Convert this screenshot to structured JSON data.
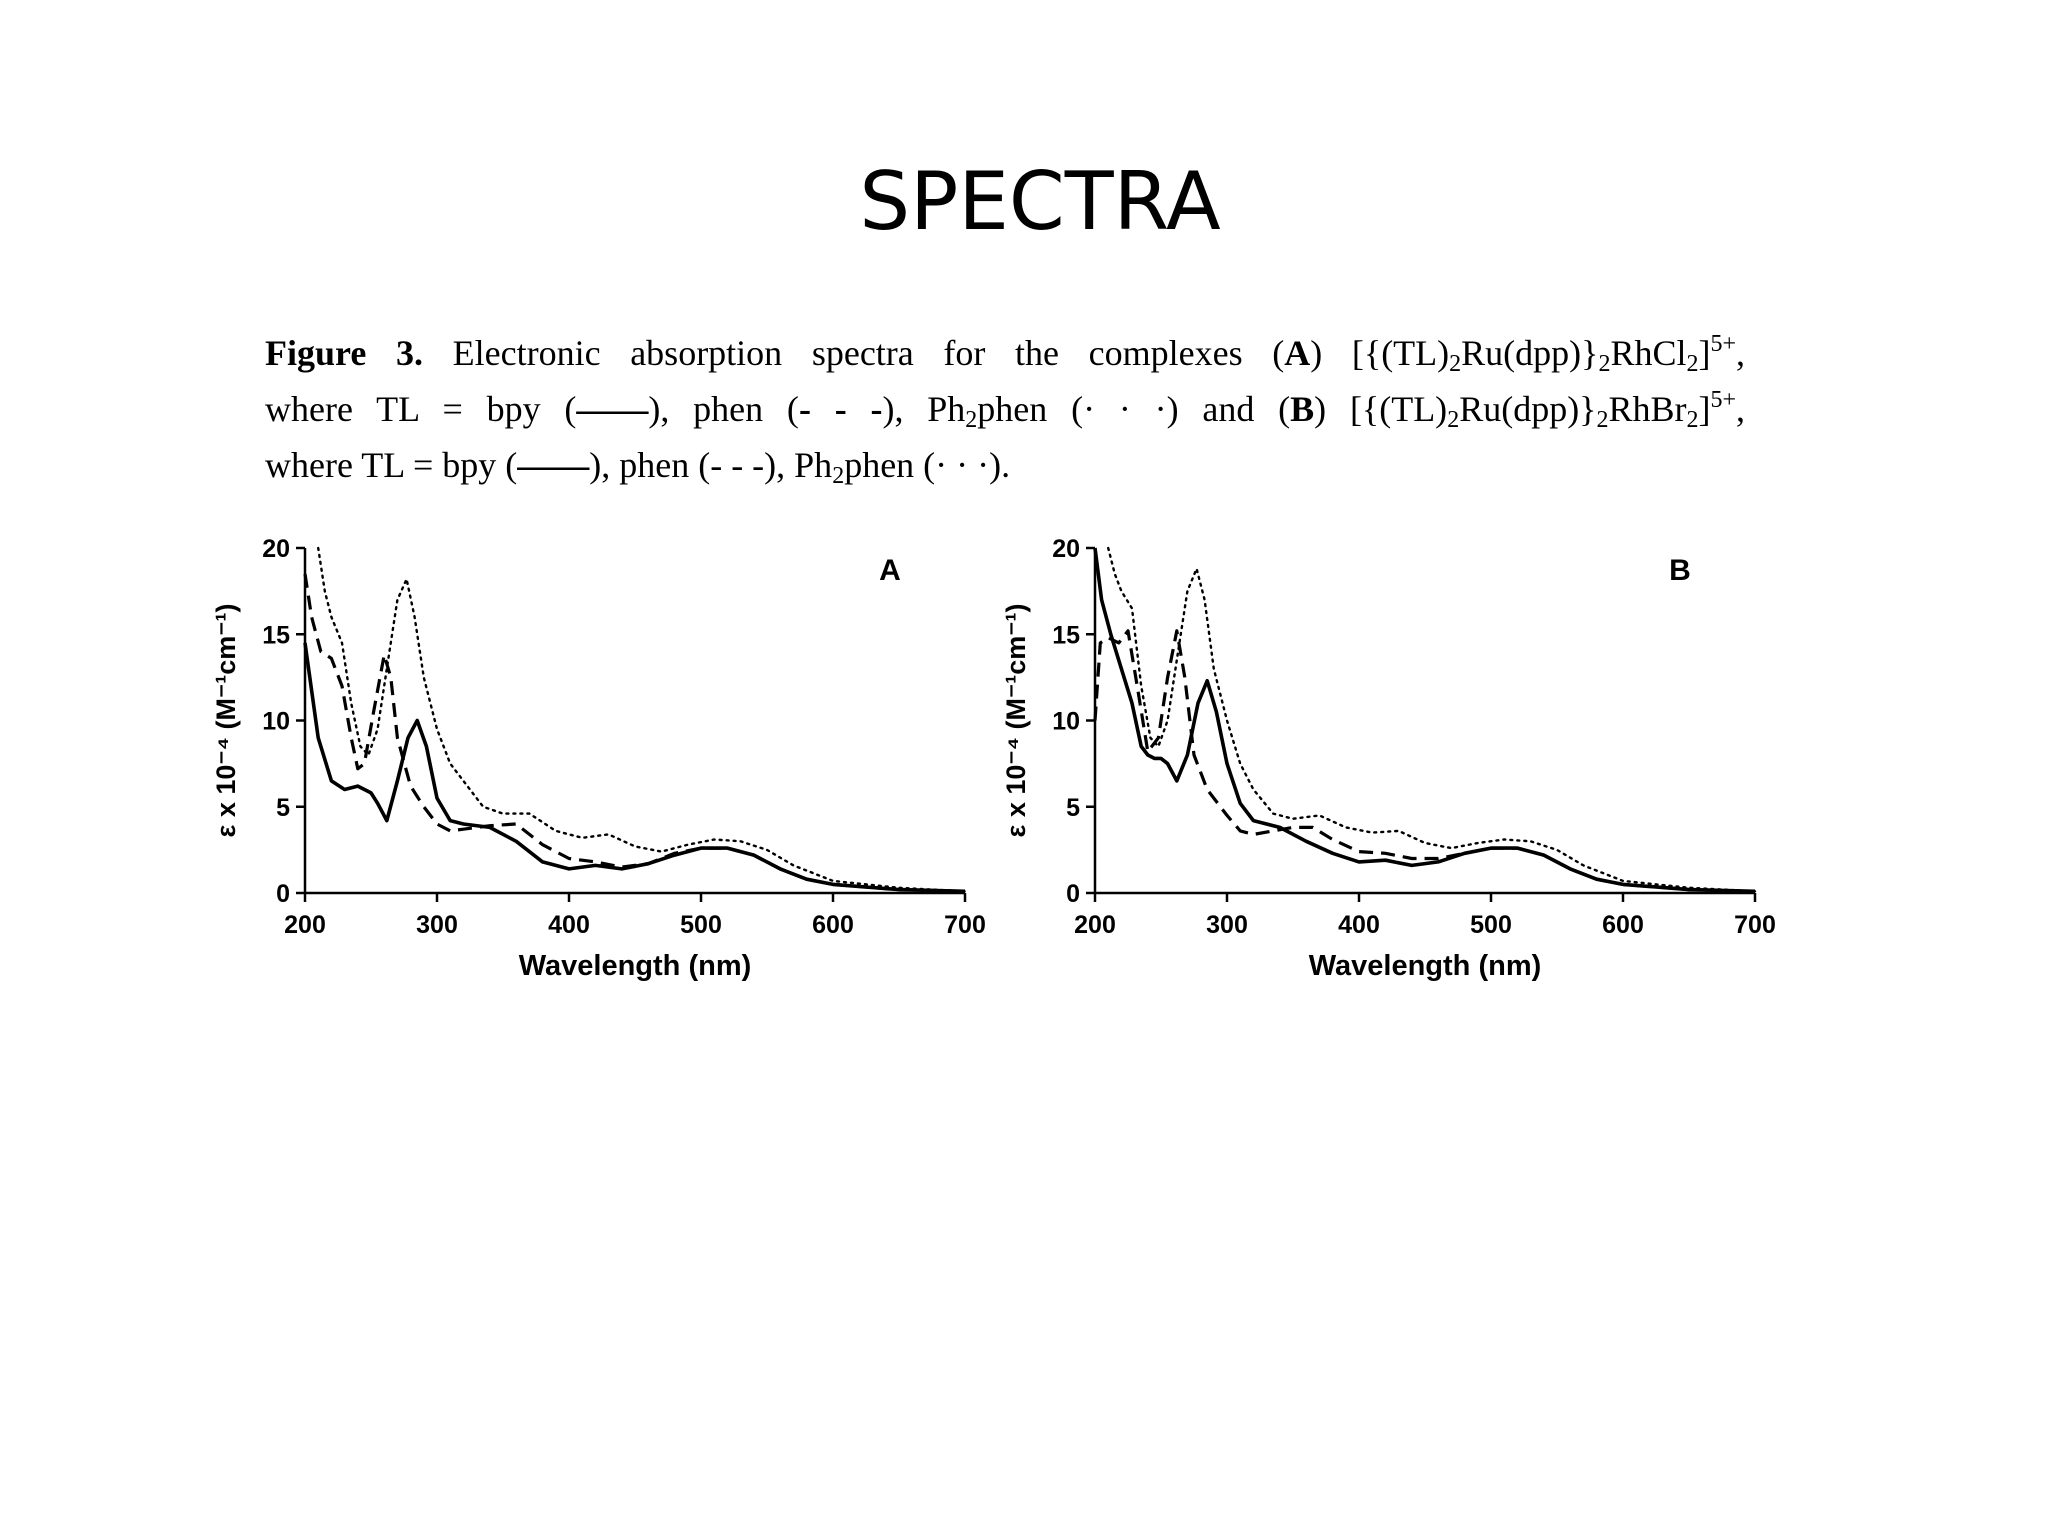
{
  "slide": {
    "title": "SPECTRA"
  },
  "caption": {
    "label": "Figure 3.",
    "intro": " Electronic absorption spectra for the complexes (",
    "panel_a": "A",
    "part1": ") [{(TL)",
    "sub_2": "2",
    "ru_dpp": "Ru(dpp)}",
    "rh_cl": "RhCl",
    "close_bracket": "]",
    "charge": "5+",
    "comma": ",",
    "where": "where TL = bpy (",
    "solid_glyph": "——",
    "phen": "), phen (",
    "dash_glyph": "- - -",
    "ph2phen_pre": "), Ph",
    "ph2phen_post": "phen (",
    "dot_glyph": "· · ·",
    "and": ") and (",
    "panel_b": "B",
    "part2": ") [{(TL)",
    "rh_br": "RhBr",
    "end": ")."
  },
  "chart_data": [
    {
      "type": "line",
      "panel_label": "A",
      "xlabel": "Wavelength (nm)",
      "ylabel": "ε x 10⁻⁴ (M⁻¹cm⁻¹)",
      "xlim": [
        200,
        700
      ],
      "ylim": [
        0,
        20
      ],
      "xticks": [
        "200",
        "300",
        "400",
        "500",
        "600",
        "700"
      ],
      "yticks": [
        "0",
        "5",
        "10",
        "15",
        "20"
      ],
      "grid": false,
      "series": [
        {
          "style": "solid",
          "x": [
            200,
            210,
            220,
            230,
            240,
            250,
            255,
            262,
            270,
            278,
            285,
            292,
            300,
            310,
            320,
            340,
            360,
            380,
            400,
            420,
            440,
            460,
            480,
            500,
            520,
            540,
            560,
            580,
            600,
            650,
            700
          ],
          "y": [
            14.5,
            9,
            6.5,
            6,
            6.2,
            5.8,
            5.2,
            4.2,
            6.5,
            9,
            10,
            8.5,
            5.5,
            4.2,
            4,
            3.8,
            3,
            1.8,
            1.4,
            1.6,
            1.4,
            1.7,
            2.2,
            2.6,
            2.6,
            2.2,
            1.4,
            0.8,
            0.5,
            0.2,
            0.1
          ]
        },
        {
          "style": "dashed",
          "x": [
            200,
            205,
            212,
            220,
            228,
            235,
            240,
            245,
            252,
            260,
            265,
            270,
            280,
            290,
            300,
            310,
            320,
            340,
            360,
            380,
            400,
            420,
            440,
            460,
            480,
            500,
            520,
            540,
            560,
            580,
            600,
            650,
            700
          ],
          "y": [
            18.5,
            16,
            14,
            13.6,
            12,
            9,
            7.2,
            7.5,
            10.5,
            13.8,
            12.5,
            9,
            6.2,
            5,
            4,
            3.6,
            3.7,
            3.9,
            4,
            2.8,
            2,
            1.8,
            1.5,
            1.7,
            2.3,
            2.6,
            2.6,
            2.2,
            1.4,
            0.8,
            0.5,
            0.2,
            0.1
          ]
        },
        {
          "style": "dotted",
          "x": [
            210,
            215,
            220,
            228,
            235,
            242,
            248,
            255,
            262,
            270,
            277,
            283,
            290,
            300,
            310,
            320,
            335,
            350,
            370,
            390,
            410,
            430,
            450,
            470,
            490,
            510,
            530,
            550,
            570,
            600,
            650,
            700
          ],
          "y": [
            20,
            17.5,
            16,
            14.5,
            11,
            8.5,
            8,
            9.5,
            13,
            17,
            18.2,
            16,
            12.5,
            9.5,
            7.5,
            6.5,
            5,
            4.6,
            4.6,
            3.6,
            3.2,
            3.4,
            2.7,
            2.4,
            2.8,
            3.1,
            3,
            2.5,
            1.6,
            0.7,
            0.3,
            0.1
          ]
        }
      ]
    },
    {
      "type": "line",
      "panel_label": "B",
      "xlabel": "Wavelength (nm)",
      "ylabel": "ε x 10⁻⁴ (M⁻¹cm⁻¹)",
      "xlim": [
        200,
        700
      ],
      "ylim": [
        0,
        20
      ],
      "xticks": [
        "200",
        "300",
        "400",
        "500",
        "600",
        "700"
      ],
      "yticks": [
        "0",
        "5",
        "10",
        "15",
        "20"
      ],
      "grid": false,
      "series": [
        {
          "style": "solid",
          "x": [
            200,
            205,
            212,
            220,
            228,
            235,
            240,
            245,
            250,
            255,
            262,
            270,
            278,
            285,
            292,
            300,
            310,
            320,
            340,
            360,
            380,
            400,
            420,
            440,
            460,
            480,
            500,
            520,
            540,
            560,
            580,
            600,
            650,
            700
          ],
          "y": [
            20,
            17,
            15,
            13,
            11,
            8.5,
            8,
            7.8,
            7.8,
            7.5,
            6.5,
            8,
            11,
            12.3,
            10.5,
            7.5,
            5.2,
            4.2,
            3.8,
            3,
            2.3,
            1.8,
            1.9,
            1.6,
            1.8,
            2.3,
            2.6,
            2.6,
            2.2,
            1.4,
            0.8,
            0.5,
            0.2,
            0.1
          ]
        },
        {
          "style": "dashed",
          "x": [
            200,
            204,
            210,
            218,
            225,
            232,
            240,
            248,
            255,
            262,
            268,
            275,
            285,
            300,
            310,
            320,
            335,
            350,
            365,
            380,
            400,
            420,
            440,
            460,
            480,
            500,
            520,
            540,
            560,
            580,
            600,
            650,
            700
          ],
          "y": [
            10,
            14.5,
            14.8,
            14.5,
            15.2,
            12,
            8.2,
            9,
            12.5,
            15.2,
            12.5,
            8,
            6,
            4.5,
            3.6,
            3.4,
            3.6,
            3.8,
            3.8,
            3.1,
            2.4,
            2.3,
            2,
            2,
            2.3,
            2.6,
            2.6,
            2.2,
            1.4,
            0.8,
            0.5,
            0.2,
            0.1
          ]
        },
        {
          "style": "dotted",
          "x": [
            210,
            215,
            220,
            228,
            235,
            242,
            248,
            255,
            262,
            270,
            277,
            283,
            290,
            300,
            310,
            320,
            335,
            350,
            370,
            390,
            410,
            430,
            450,
            470,
            490,
            510,
            530,
            550,
            570,
            600,
            650,
            700
          ],
          "y": [
            20,
            18.5,
            17.5,
            16.5,
            12,
            9,
            8.5,
            10,
            13.5,
            17.5,
            18.8,
            17,
            13,
            10,
            7.5,
            6,
            4.6,
            4.3,
            4.5,
            3.8,
            3.5,
            3.6,
            2.9,
            2.6,
            2.9,
            3.1,
            3,
            2.5,
            1.6,
            0.7,
            0.3,
            0.1
          ]
        }
      ]
    }
  ]
}
